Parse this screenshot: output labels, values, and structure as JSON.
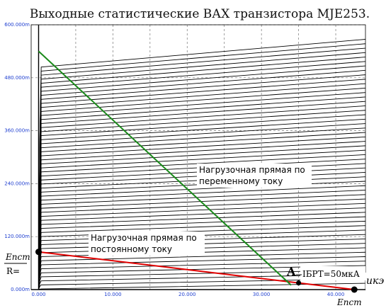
{
  "chart_data": {
    "type": "line",
    "title": "Выходные статистические ВАХ транзистора MJE253.",
    "xlabel": "uкэ",
    "ylabel": "",
    "xlim": [
      -1.0,
      44.0
    ],
    "ylim": [
      0,
      0.6
    ],
    "x_ticks": [
      "0.000",
      "10.000",
      "20.000",
      "30.000",
      "40.000"
    ],
    "x_tick_values": [
      0,
      10,
      20,
      30,
      40
    ],
    "y_ticks": [
      "0.000m",
      "120.000m",
      "240.000m",
      "360.000m",
      "480.000m",
      "600.000m"
    ],
    "y_tick_values": [
      0,
      0.12,
      0.24,
      0.36,
      0.48,
      0.6
    ],
    "family": {
      "description_count": 56,
      "x_start": 0.0,
      "x_end": 44.0,
      "current_step": 0.00914,
      "curve_slope_per_volt": 0.00117
    },
    "series": [
      {
        "name": "Нагрузочная прямая по постоянному току",
        "color": "#e00000",
        "x": [
          0,
          42.5
        ],
        "y": [
          0.0855,
          0
        ]
      },
      {
        "name": "Нагрузочная прямая по переменному току",
        "color": "#1a8a1a",
        "x": [
          0,
          34.0
        ],
        "y": [
          0.54,
          0.01
        ]
      }
    ],
    "points": [
      {
        "label": "Eпст/R=",
        "x": 0,
        "y": 0.0855
      },
      {
        "label": "A",
        "x": 35.0,
        "y": 0.015
      },
      {
        "label": "Eпст",
        "x": 42.5,
        "y": 0
      }
    ]
  },
  "annotations": {
    "ac_line_label_1": "Нагрузочная прямая по",
    "ac_line_label_2": "переменному току",
    "dc_line_label_1": "Нагрузочная прямая по",
    "dc_line_label_2": "постоянному току",
    "point_a": "A",
    "ib_label": "IБРТ=50мкА",
    "x_axis_name": "uкэ",
    "e_pst": "Eпст",
    "r_eq": "R="
  },
  "colors": {
    "axis": "#000000",
    "tick_text": "#1f3fd0",
    "dc_line": "#e00000",
    "ac_line": "#1a8a1a",
    "curves": "#000000",
    "grid": "#777777"
  }
}
